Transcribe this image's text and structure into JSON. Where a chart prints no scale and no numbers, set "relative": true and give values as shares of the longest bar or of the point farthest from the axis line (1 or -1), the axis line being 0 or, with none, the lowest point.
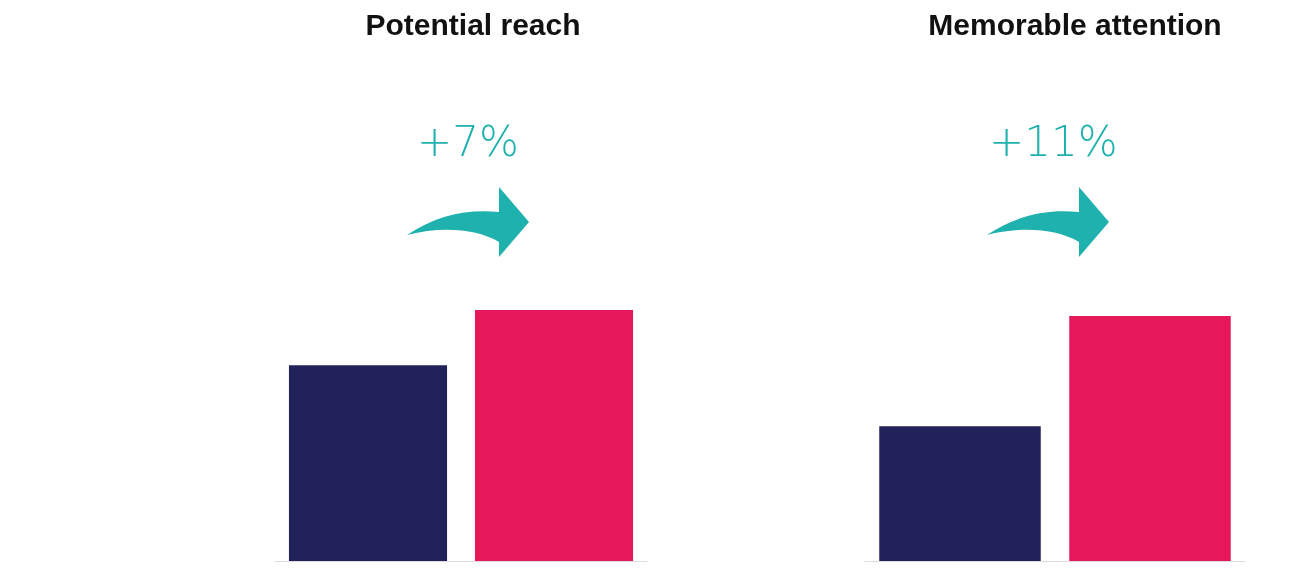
{
  "chart_data": [
    {
      "type": "bar",
      "title": "Potential reach",
      "categories": [
        null,
        null
      ],
      "values": [
        0.78,
        1
      ],
      "colors": [
        "#22225a",
        "#e5185a"
      ],
      "relative": true,
      "annotations": [
        "+7%"
      ]
    },
    {
      "type": "bar",
      "title": "Memorable attention",
      "categories": [
        null,
        null
      ],
      "values": [
        0.55,
        1
      ],
      "colors": [
        "#22225a",
        "#e5185a"
      ],
      "relative": true,
      "annotations": [
        "+11%"
      ]
    }
  ]
}
